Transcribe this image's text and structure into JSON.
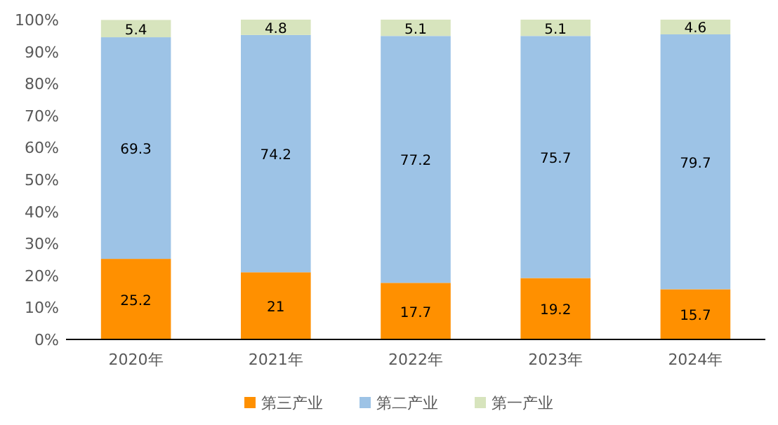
{
  "chart_data": {
    "type": "bar",
    "stacked": true,
    "categories": [
      "2020年",
      "2021年",
      "2022年",
      "2023年",
      "2024年"
    ],
    "series": [
      {
        "name": "第三产业",
        "color": "#ff9000",
        "values": [
          25.2,
          21,
          17.7,
          19.2,
          15.7
        ]
      },
      {
        "name": "第二产业",
        "color": "#9dc3e6",
        "values": [
          69.3,
          74.2,
          77.2,
          75.7,
          79.7
        ]
      },
      {
        "name": "第一产业",
        "color": "#d7e4bd",
        "values": [
          5.4,
          4.8,
          5.1,
          5.1,
          4.6
        ]
      }
    ],
    "ylim": [
      0,
      100
    ],
    "yticks": [
      {
        "value": 0,
        "label": "0%"
      },
      {
        "value": 10,
        "label": "10%"
      },
      {
        "value": 20,
        "label": "20%"
      },
      {
        "value": 30,
        "label": "30%"
      },
      {
        "value": 40,
        "label": "40%"
      },
      {
        "value": 50,
        "label": "50%"
      },
      {
        "value": 60,
        "label": "60%"
      },
      {
        "value": 70,
        "label": "70%"
      },
      {
        "value": 80,
        "label": "80%"
      },
      {
        "value": 90,
        "label": "90%"
      },
      {
        "value": 100,
        "label": "100%"
      }
    ],
    "data_labels": true,
    "legend": "bottom"
  }
}
